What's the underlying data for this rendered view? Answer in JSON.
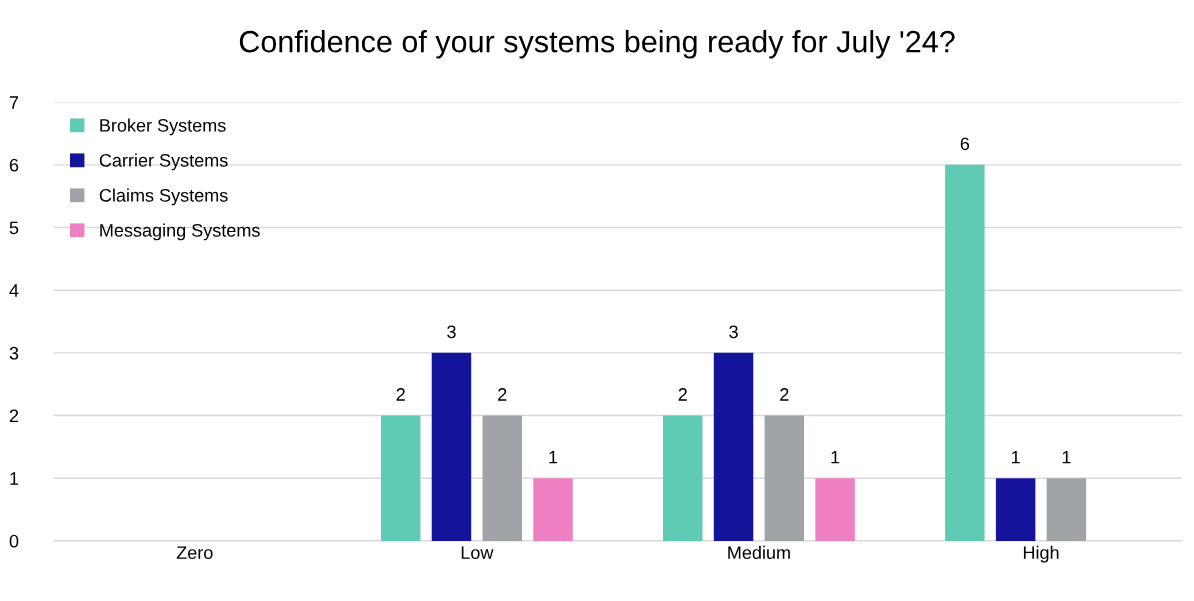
{
  "chart_data": {
    "type": "bar",
    "title": "Confidence of your systems being ready for July '24?",
    "categories": [
      "Zero",
      "Low",
      "Medium",
      "High"
    ],
    "series": [
      {
        "name": "Broker Systems",
        "color": "#5fcbb5",
        "values": [
          null,
          2,
          2,
          6
        ]
      },
      {
        "name": "Carrier Systems",
        "color": "#14149b",
        "values": [
          null,
          3,
          3,
          1
        ]
      },
      {
        "name": "Claims Systems",
        "color": "#a0a3a8",
        "values": [
          null,
          2,
          2,
          1
        ]
      },
      {
        "name": "Messaging Systems",
        "color": "#ee7fc0",
        "values": [
          null,
          1,
          1,
          null
        ]
      }
    ],
    "ylim": [
      0,
      7
    ],
    "yticks": [
      0,
      1,
      2,
      3,
      4,
      5,
      6,
      7
    ],
    "grid": "y",
    "legend": "top left",
    "data_labels": true
  }
}
